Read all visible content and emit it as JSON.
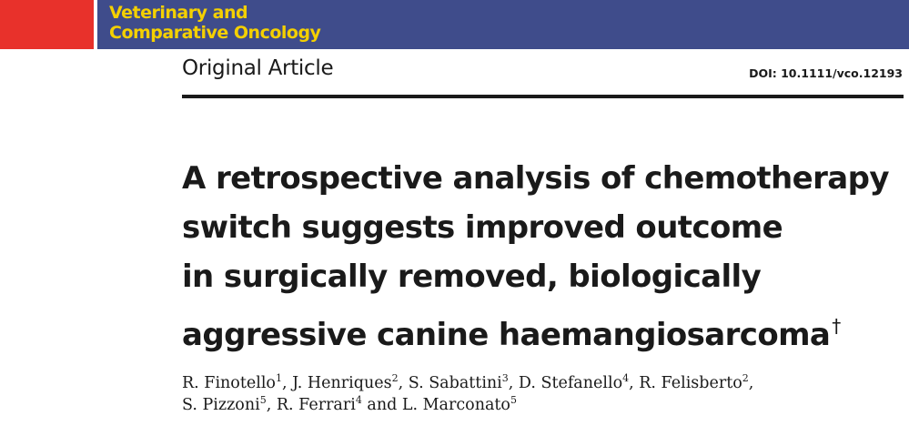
{
  "header": {
    "journal_line1": "Veterinary and",
    "journal_line2": "Comparative Oncology",
    "colors": {
      "bar": "#3f4c8b",
      "accent_block": "#e8312b",
      "journal_text": "#f4d000"
    }
  },
  "meta": {
    "article_type": "Original Article",
    "doi": "DOI: 10.1111/vco.12193"
  },
  "title": {
    "lines": [
      "A retrospective analysis of chemotherapy",
      "switch suggests improved outcome",
      "in surgically removed, biologically",
      "aggressive canine haemangiosarcoma"
    ],
    "footnote_mark": "†"
  },
  "authors": [
    {
      "name": "R. Finotello",
      "aff": "1",
      "sep": ", "
    },
    {
      "name": "J. Henriques",
      "aff": "2",
      "sep": ", "
    },
    {
      "name": "S. Sabattini",
      "aff": "3",
      "sep": ", "
    },
    {
      "name": "D. Stefanello",
      "aff": "4",
      "sep": ", "
    },
    {
      "name": "R. Felisberto",
      "aff": "2",
      "sep": ","
    },
    {
      "name": "S. Pizzoni",
      "aff": "5",
      "sep": ", "
    },
    {
      "name": "R. Ferrari",
      "aff": "4",
      "sep": " and "
    },
    {
      "name": "L. Marconato",
      "aff": "5",
      "sep": ""
    }
  ]
}
